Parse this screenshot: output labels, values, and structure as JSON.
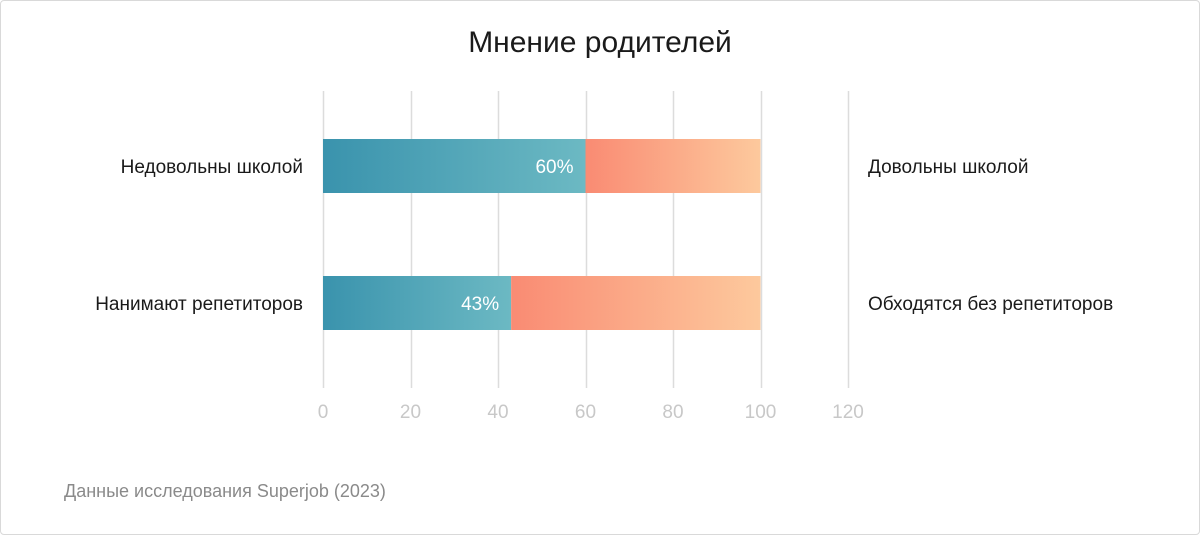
{
  "chart_data": {
    "type": "bar",
    "orientation": "horizontal",
    "stacked": true,
    "title": "Мнение родителей",
    "categories": [
      "Недовольны школой",
      "Нанимают репетиторов"
    ],
    "opposite_labels": [
      "Довольны школой",
      "Обходятся без репетиторов"
    ],
    "series": [
      {
        "values": [
          60,
          43
        ],
        "data_labels": [
          "60%",
          "43%"
        ]
      },
      {
        "values": [
          40,
          57
        ]
      }
    ],
    "xlim": [
      0,
      120
    ],
    "xticks": [
      0,
      20,
      40,
      60,
      80,
      100,
      120
    ],
    "grid": true,
    "colors": {
      "series1_start": "#3a93ad",
      "series1_end": "#6cb9c3",
      "series2_start": "#f98b73",
      "series2_end": "#fdc99d",
      "grid": "#dcdcdc",
      "tick_text": "#c8c8c8"
    }
  },
  "source": "Данные исследования Superjob (2023)"
}
